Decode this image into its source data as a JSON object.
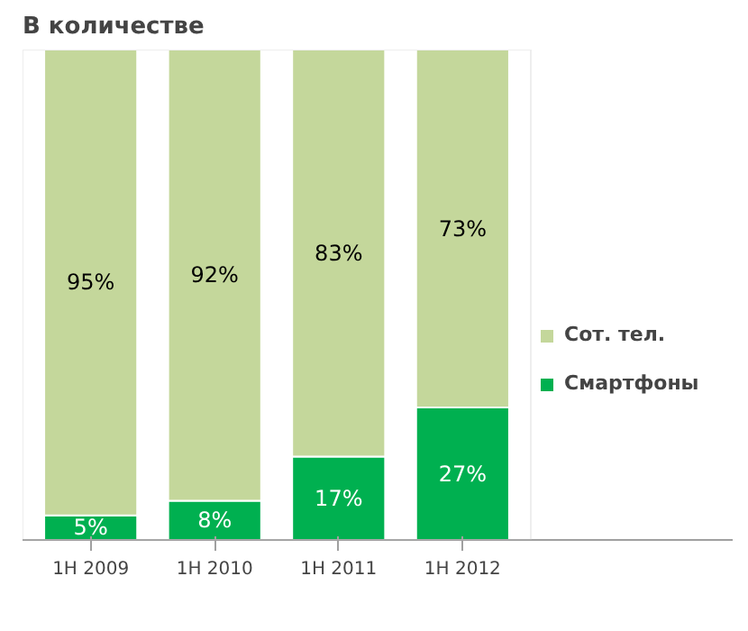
{
  "chart_data": {
    "type": "bar",
    "title": "В количестве",
    "stacked": true,
    "legend": "right",
    "categories": [
      "1H 2009",
      "1H 2010",
      "1H 2011",
      "1H 2012"
    ],
    "series": [
      {
        "name": "Смартфоны",
        "color": "#00b050",
        "values": [
          5,
          8,
          17,
          27
        ],
        "value_labels": [
          "5%",
          "8%",
          "17%",
          "27%"
        ]
      },
      {
        "name": "Сот. тел.",
        "color": "#c4d79b",
        "values": [
          95,
          92,
          83,
          73
        ],
        "value_labels": [
          "95%",
          "92%",
          "83%",
          "73%"
        ]
      }
    ]
  }
}
